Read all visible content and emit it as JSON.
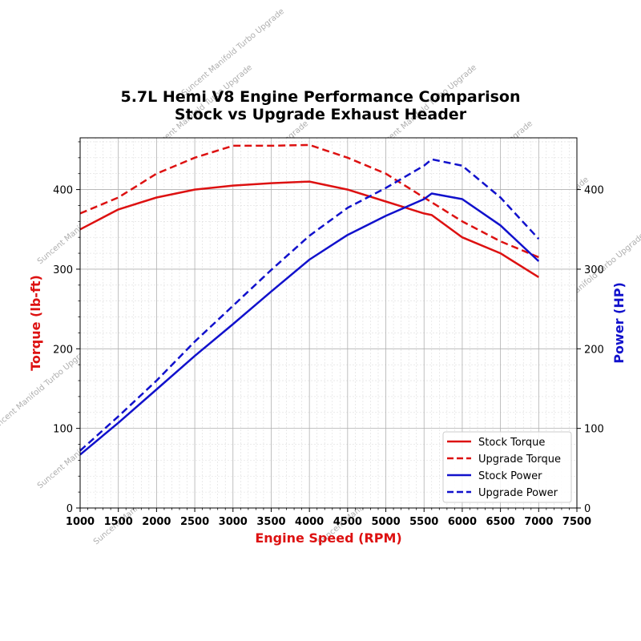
{
  "chart_data": {
    "type": "line",
    "title": "5.7L Hemi V8 Engine Performance Comparison",
    "subtitle": "Stock vs Upgrade Exhaust Header",
    "xlabel": "Engine Speed (RPM)",
    "ylabel_left": "Torque (lb-ft)",
    "ylabel_right": "Power (HP)",
    "xlim": [
      1000,
      7500
    ],
    "ylim_left": [
      0,
      465
    ],
    "ylim_right": [
      0,
      465
    ],
    "xticks": [
      1000,
      1500,
      2000,
      2500,
      3000,
      3500,
      4000,
      4500,
      5000,
      5500,
      6000,
      6500,
      7000,
      7500
    ],
    "yticks_left": [
      0,
      100,
      200,
      300,
      400
    ],
    "yticks_right": [
      0,
      100,
      200,
      300,
      400
    ],
    "grid": true,
    "legend_position": "lower-right",
    "watermark_text": "Suncent Manifold Turbo Upgrade",
    "series": [
      {
        "name": "Stock Torque",
        "axis": "left",
        "color": "#dd1111",
        "style": "solid",
        "x": [
          1000,
          1500,
          2000,
          2500,
          3000,
          3500,
          4000,
          4500,
          5000,
          5500,
          5600,
          6000,
          6500,
          7000
        ],
        "y": [
          350,
          375,
          390,
          400,
          405,
          408,
          410,
          400,
          385,
          370,
          368,
          340,
          320,
          290
        ]
      },
      {
        "name": "Upgrade Torque",
        "axis": "left",
        "color": "#dd1111",
        "style": "dashed",
        "x": [
          1000,
          1500,
          2000,
          2500,
          3000,
          3500,
          4000,
          4500,
          5000,
          5500,
          6000,
          6500,
          7000
        ],
        "y": [
          370,
          390,
          420,
          440,
          455,
          455,
          456,
          440,
          420,
          390,
          360,
          335,
          315
        ]
      },
      {
        "name": "Stock Power",
        "axis": "right",
        "color": "#1111cc",
        "style": "solid",
        "x": [
          1000,
          1500,
          2000,
          2500,
          3000,
          3500,
          4000,
          4500,
          5000,
          5500,
          5600,
          6000,
          6500,
          7000
        ],
        "y": [
          67,
          107,
          149,
          191,
          231,
          272,
          312,
          343,
          367,
          388,
          395,
          388,
          355,
          310
        ]
      },
      {
        "name": "Upgrade Power",
        "axis": "right",
        "color": "#1111cc",
        "style": "dashed",
        "x": [
          1000,
          1500,
          2000,
          2500,
          3000,
          3500,
          4000,
          4500,
          5000,
          5500,
          5600,
          6000,
          6500,
          7000
        ],
        "y": [
          72,
          115,
          160,
          209,
          254,
          299,
          342,
          377,
          402,
          430,
          438,
          430,
          390,
          338
        ]
      }
    ]
  }
}
